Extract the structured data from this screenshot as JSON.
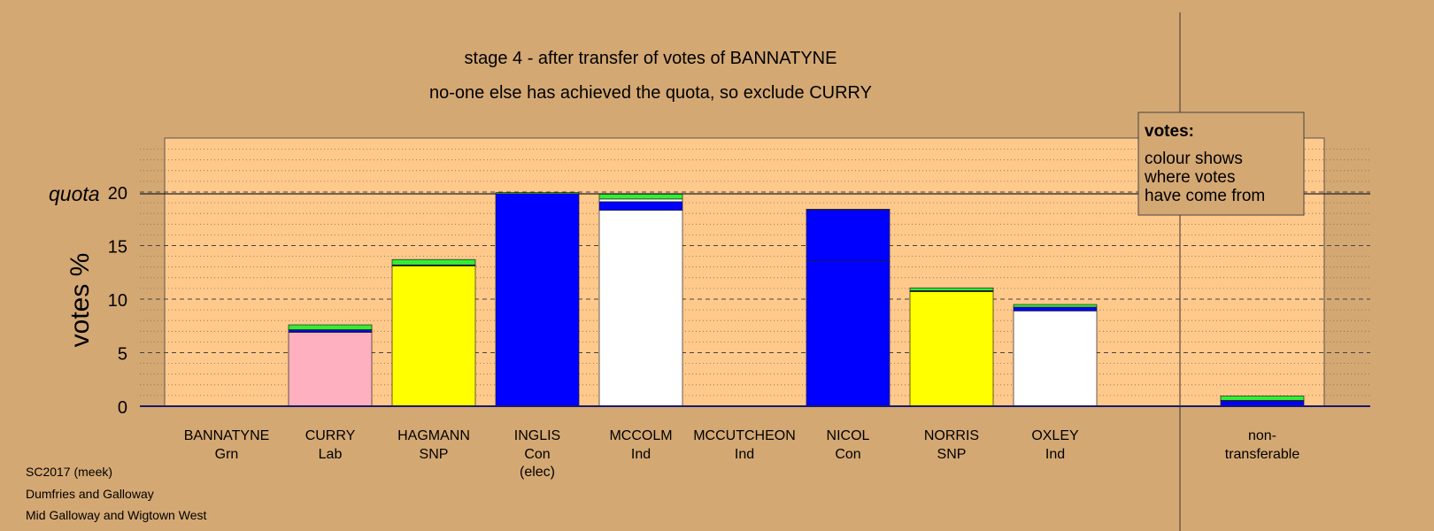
{
  "chart_data": {
    "type": "bar",
    "stacked": true,
    "title": "stage 4 - after transfer of votes of BANNATYNE",
    "subtitle": "no-one else has achieved the quota, so exclude CURRY",
    "ylabel": "votes %",
    "quota_label": "quota",
    "quota_value": 20,
    "ylim": [
      0,
      25
    ],
    "yticks": [
      0,
      5,
      10,
      15,
      20
    ],
    "grid": true,
    "legend": {
      "title": "votes:",
      "lines": [
        "colour shows",
        "where votes",
        "have come from"
      ],
      "placement": "top-right"
    },
    "colors": {
      "background": "#d4a873",
      "plot_background": "#ffc98c",
      "Lab": "#ffb0c0",
      "SNP": "#ffff00",
      "Con": "#0000ff",
      "Ind": "#ffffff",
      "Grn": "#33ee33"
    },
    "categories": [
      {
        "name": "BANNATYNE",
        "party": "Grn",
        "note": "",
        "segments": []
      },
      {
        "name": "CURRY",
        "party": "Lab",
        "note": "",
        "segments": [
          {
            "color": "Lab",
            "value": 6.9
          },
          {
            "color": "Con",
            "value": 0.2
          },
          {
            "color": "Ind",
            "value": 0.05
          },
          {
            "color": "Grn",
            "value": 0.45
          }
        ]
      },
      {
        "name": "HAGMANN",
        "party": "SNP",
        "note": "",
        "segments": [
          {
            "color": "SNP",
            "value": 13.1
          },
          {
            "color": "Con",
            "value": 0.05
          },
          {
            "color": "Ind",
            "value": 0.05
          },
          {
            "color": "Grn",
            "value": 0.5
          }
        ]
      },
      {
        "name": "INGLIS",
        "party": "Con",
        "note": "(elec)",
        "segments": [
          {
            "color": "Con",
            "value": 19.85
          },
          {
            "color": "Grn",
            "value": 0.1
          }
        ]
      },
      {
        "name": "MCCOLM",
        "party": "Ind",
        "note": "",
        "segments": [
          {
            "color": "Ind",
            "value": 18.3
          },
          {
            "color": "Con",
            "value": 0.8
          },
          {
            "color": "Ind",
            "value": 0.25
          },
          {
            "color": "Grn",
            "value": 0.45
          }
        ]
      },
      {
        "name": "MCCUTCHEON",
        "party": "Ind",
        "note": "",
        "segments": []
      },
      {
        "name": "NICOL",
        "party": "Con",
        "note": "",
        "segments": [
          {
            "color": "Con",
            "value": 13.5
          },
          {
            "color": "Con",
            "value": 4.85
          },
          {
            "color": "Grn",
            "value": 0.05
          }
        ]
      },
      {
        "name": "NORRIS",
        "party": "SNP",
        "note": "",
        "segments": [
          {
            "color": "SNP",
            "value": 10.7
          },
          {
            "color": "Con",
            "value": 0.05
          },
          {
            "color": "Ind",
            "value": 0.05
          },
          {
            "color": "Grn",
            "value": 0.25
          }
        ]
      },
      {
        "name": "OXLEY",
        "party": "Ind",
        "note": "",
        "segments": [
          {
            "color": "Ind",
            "value": 8.9
          },
          {
            "color": "Con",
            "value": 0.35
          },
          {
            "color": "Grn",
            "value": 0.25
          }
        ]
      },
      {
        "name": "",
        "party": "",
        "note": "",
        "segments": []
      },
      {
        "name": "non-",
        "party": "transferable",
        "note": "",
        "segments": [
          {
            "color": "Con",
            "value": 0.5
          },
          {
            "color": "Ind",
            "value": 0.05
          },
          {
            "color": "Grn",
            "value": 0.4
          }
        ]
      }
    ]
  },
  "footer": {
    "line1": "SC2017 (meek)",
    "line2": "Dumfries and Galloway",
    "line3": "Mid Galloway and Wigtown West"
  }
}
